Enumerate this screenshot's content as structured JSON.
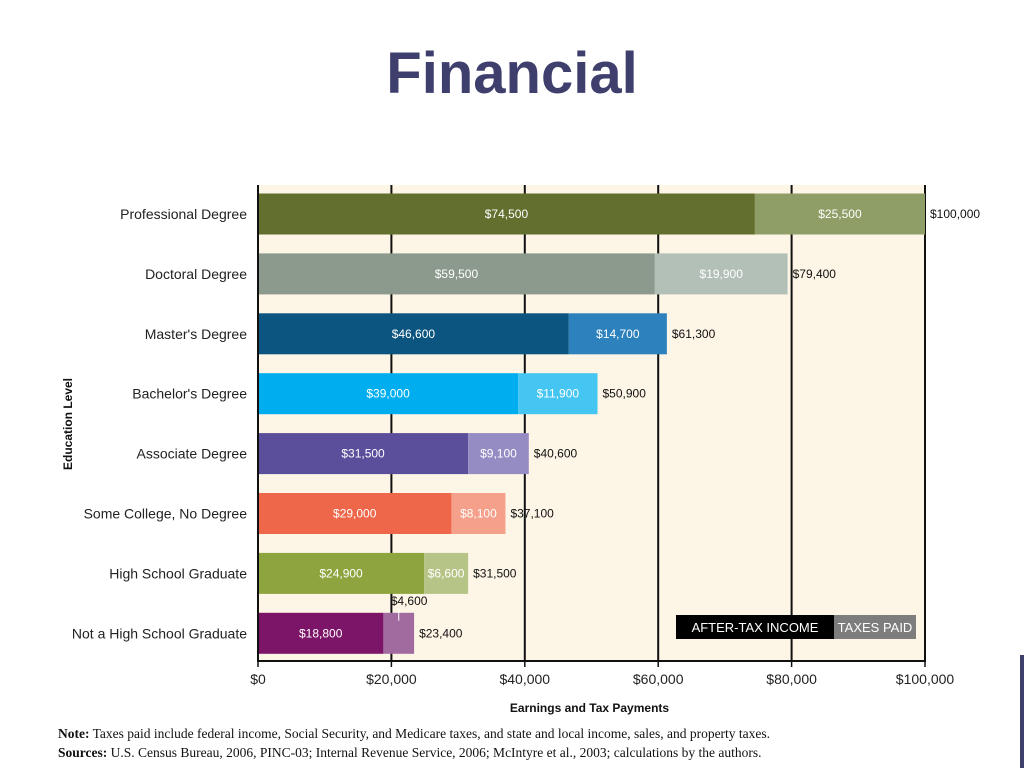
{
  "slide": {
    "title": "Financial"
  },
  "chart_data": {
    "type": "bar",
    "orientation": "horizontal",
    "stacked": true,
    "ylabel": "Education Level",
    "xlabel": "Earnings and Tax Payments",
    "xlim": [
      0,
      100000
    ],
    "x_ticks": [
      0,
      20000,
      40000,
      60000,
      80000,
      100000
    ],
    "x_tick_labels": [
      "$0",
      "$20,000",
      "$40,000",
      "$60,000",
      "$80,000",
      "$100,000"
    ],
    "grid": "vertical gridlines at $20,000 intervals",
    "legend_position": "bottom-right inside plot",
    "categories": [
      "Professional Degree",
      "Doctoral Degree",
      "Master's Degree",
      "Bachelor's Degree",
      "Associate Degree",
      "Some College, No Degree",
      "High School Graduate",
      "Not a High School Graduate"
    ],
    "series": [
      {
        "name": "AFTER-TAX INCOME",
        "values": [
          74500,
          59500,
          46600,
          39000,
          31500,
          29000,
          24900,
          18800
        ],
        "labels": [
          "$74,500",
          "$59,500",
          "$46,600",
          "$39,000",
          "$31,500",
          "$29,000",
          "$24,900",
          "$18,800"
        ]
      },
      {
        "name": "TAXES PAID",
        "values": [
          25500,
          19900,
          14700,
          11900,
          9100,
          8100,
          6600,
          4600
        ],
        "labels": [
          "$25,500",
          "$19,900",
          "$14,700",
          "$11,900",
          "$9,100",
          "$8,100",
          "$6,600",
          "$4,600"
        ]
      }
    ],
    "totals": [
      100000,
      79400,
      61300,
      50900,
      40600,
      37100,
      31500,
      23400
    ],
    "total_labels": [
      "$100,000",
      "$79,400",
      "$61,300",
      "$50,900",
      "$40,600",
      "$37,100",
      "$31,500",
      "$23,400"
    ],
    "colors": {
      "plot_background": "#fdf5e5",
      "after_tax": [
        "#626f2f",
        "#8b9a8c",
        "#0c5580",
        "#00aeef",
        "#5b4f9b",
        "#ee674b",
        "#8ea53f",
        "#7c1467"
      ],
      "taxes": [
        "#8f9e66",
        "#b3c0b8",
        "#2d82bd",
        "#45c5f1",
        "#968cc4",
        "#f5a08b",
        "#b7c488",
        "#a26ba0"
      ],
      "legend_after_tax": "#000000",
      "legend_taxes": "#7d7d7d"
    }
  },
  "notes": {
    "note_label": "Note:",
    "note_text": " Taxes paid include federal income, Social Security, and Medicare taxes, and state and local income, sales, and property taxes.",
    "sources_label": "Sources:",
    "sources_text": " U.S. Census Bureau, 2006, PINC-03; Internal Revenue Service, 2006; McIntyre et al., 2003; calculations by the authors."
  }
}
